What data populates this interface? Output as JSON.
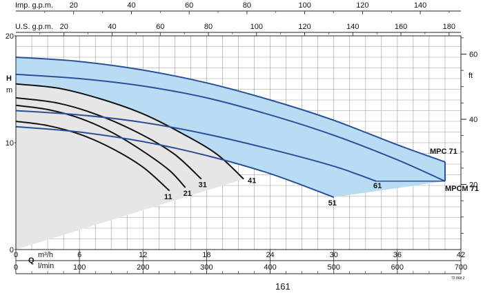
{
  "chart_data": {
    "type": "line",
    "title": "",
    "top_axes": [
      {
        "label": "Imp. g.p.m.",
        "ticks": [
          20,
          40,
          60,
          80,
          100,
          120,
          140
        ],
        "max": 154.07
      },
      {
        "label": "U.S. g.p.m.",
        "ticks": [
          20,
          40,
          60,
          80,
          100,
          120,
          140,
          160,
          180
        ],
        "max": 184.93
      }
    ],
    "x_axes": [
      {
        "label": "Q",
        "unit": "m³/h",
        "ticks": [
          0,
          6,
          12,
          18,
          24,
          30,
          36,
          42
        ],
        "range": [
          0,
          42
        ]
      },
      {
        "label": "l/min",
        "ticks": [
          0,
          100,
          200,
          300,
          400,
          500,
          600,
          700
        ],
        "range": [
          0,
          700
        ]
      }
    ],
    "y_axes": [
      {
        "label": "H",
        "unit": "m",
        "ticks": [
          0,
          10,
          20
        ],
        "range": [
          0,
          20
        ]
      },
      {
        "label": "ft",
        "ticks": [
          20,
          40,
          60
        ],
        "range": [
          0,
          65.6
        ]
      }
    ],
    "grid": true,
    "series": [
      {
        "name": "11",
        "color": "#111111",
        "points": [
          [
            0,
            12
          ],
          [
            3,
            11.6
          ],
          [
            6,
            10.8
          ],
          [
            9,
            9.5
          ],
          [
            12,
            7.7
          ],
          [
            14.5,
            5.5
          ]
        ]
      },
      {
        "name": "21",
        "color": "#111111",
        "points": [
          [
            0,
            13.5
          ],
          [
            3,
            13.1
          ],
          [
            6,
            12.3
          ],
          [
            9,
            11
          ],
          [
            12,
            9.2
          ],
          [
            14.5,
            7.4
          ],
          [
            16,
            5.8
          ]
        ]
      },
      {
        "name": "31",
        "color": "#111111",
        "points": [
          [
            0,
            14.2
          ],
          [
            4,
            13.7
          ],
          [
            8,
            12.5
          ],
          [
            12,
            10.7
          ],
          [
            15,
            8.9
          ],
          [
            17.5,
            6.6
          ]
        ]
      },
      {
        "name": "41",
        "color": "#111111",
        "points": [
          [
            0,
            15.5
          ],
          [
            4,
            15.1
          ],
          [
            8,
            14.1
          ],
          [
            12,
            12.7
          ],
          [
            16,
            10.7
          ],
          [
            19,
            8.9
          ],
          [
            21.5,
            6.6
          ]
        ]
      },
      {
        "name": "51",
        "color": "#2a4f9a",
        "points": [
          [
            0,
            11.5
          ],
          [
            6,
            11
          ],
          [
            12,
            10.1
          ],
          [
            18,
            8.8
          ],
          [
            24,
            7.1
          ],
          [
            30,
            4.9
          ]
        ]
      },
      {
        "name": "61",
        "color": "#2a4f9a",
        "points": [
          [
            0,
            13
          ],
          [
            6,
            12.6
          ],
          [
            12,
            11.9
          ],
          [
            18,
            10.8
          ],
          [
            24,
            9.4
          ],
          [
            30,
            7.8
          ],
          [
            34,
            6.4
          ]
        ]
      },
      {
        "name": "MPCM 71",
        "color": "#2a4f9a",
        "points": [
          [
            0,
            16.4
          ],
          [
            6,
            16
          ],
          [
            12,
            15.3
          ],
          [
            18,
            14.2
          ],
          [
            24,
            12.6
          ],
          [
            30,
            10.7
          ],
          [
            36,
            8.4
          ],
          [
            40.5,
            6.4
          ]
        ]
      },
      {
        "name": "MPC 71",
        "color": "#2a4f9a",
        "points": [
          [
            0,
            18
          ],
          [
            6,
            17.6
          ],
          [
            12,
            16.8
          ],
          [
            18,
            15.6
          ],
          [
            24,
            14
          ],
          [
            30,
            12.1
          ],
          [
            36,
            9.8
          ],
          [
            40.5,
            8.2
          ]
        ]
      }
    ],
    "shaded_regions": [
      {
        "between": [
          "51",
          "MPC 71"
        ],
        "color": "#b8dcf3"
      },
      {
        "under": [
          "41"
        ],
        "color": "#e6e6e6"
      }
    ],
    "page_number": "161",
    "footnote": "72.868.2"
  }
}
